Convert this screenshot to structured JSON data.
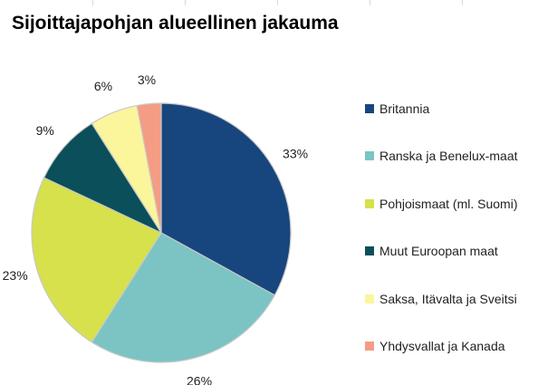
{
  "chart_data": {
    "type": "pie",
    "title": "Sijoittajapohjan alueellinen jakauma",
    "categories": [
      "Britannia",
      "Ranska ja Benelux-maat",
      "Pohjoismaat (ml. Suomi)",
      "Muut Euroopan maat",
      "Saksa, Itävalta ja Sveitsi",
      "Yhdysvallat ja Kanada"
    ],
    "values": [
      33,
      26,
      23,
      9,
      6,
      3
    ],
    "labels": [
      "33%",
      "26%",
      "23%",
      "9%",
      "6%",
      "3%"
    ],
    "colors": [
      "#17467e",
      "#7bc4c3",
      "#d6e14b",
      "#0a4f5a",
      "#fbf59c",
      "#f59c84"
    ],
    "legend_position": "right",
    "start_angle": "12 o'clock",
    "direction": "clockwise"
  }
}
